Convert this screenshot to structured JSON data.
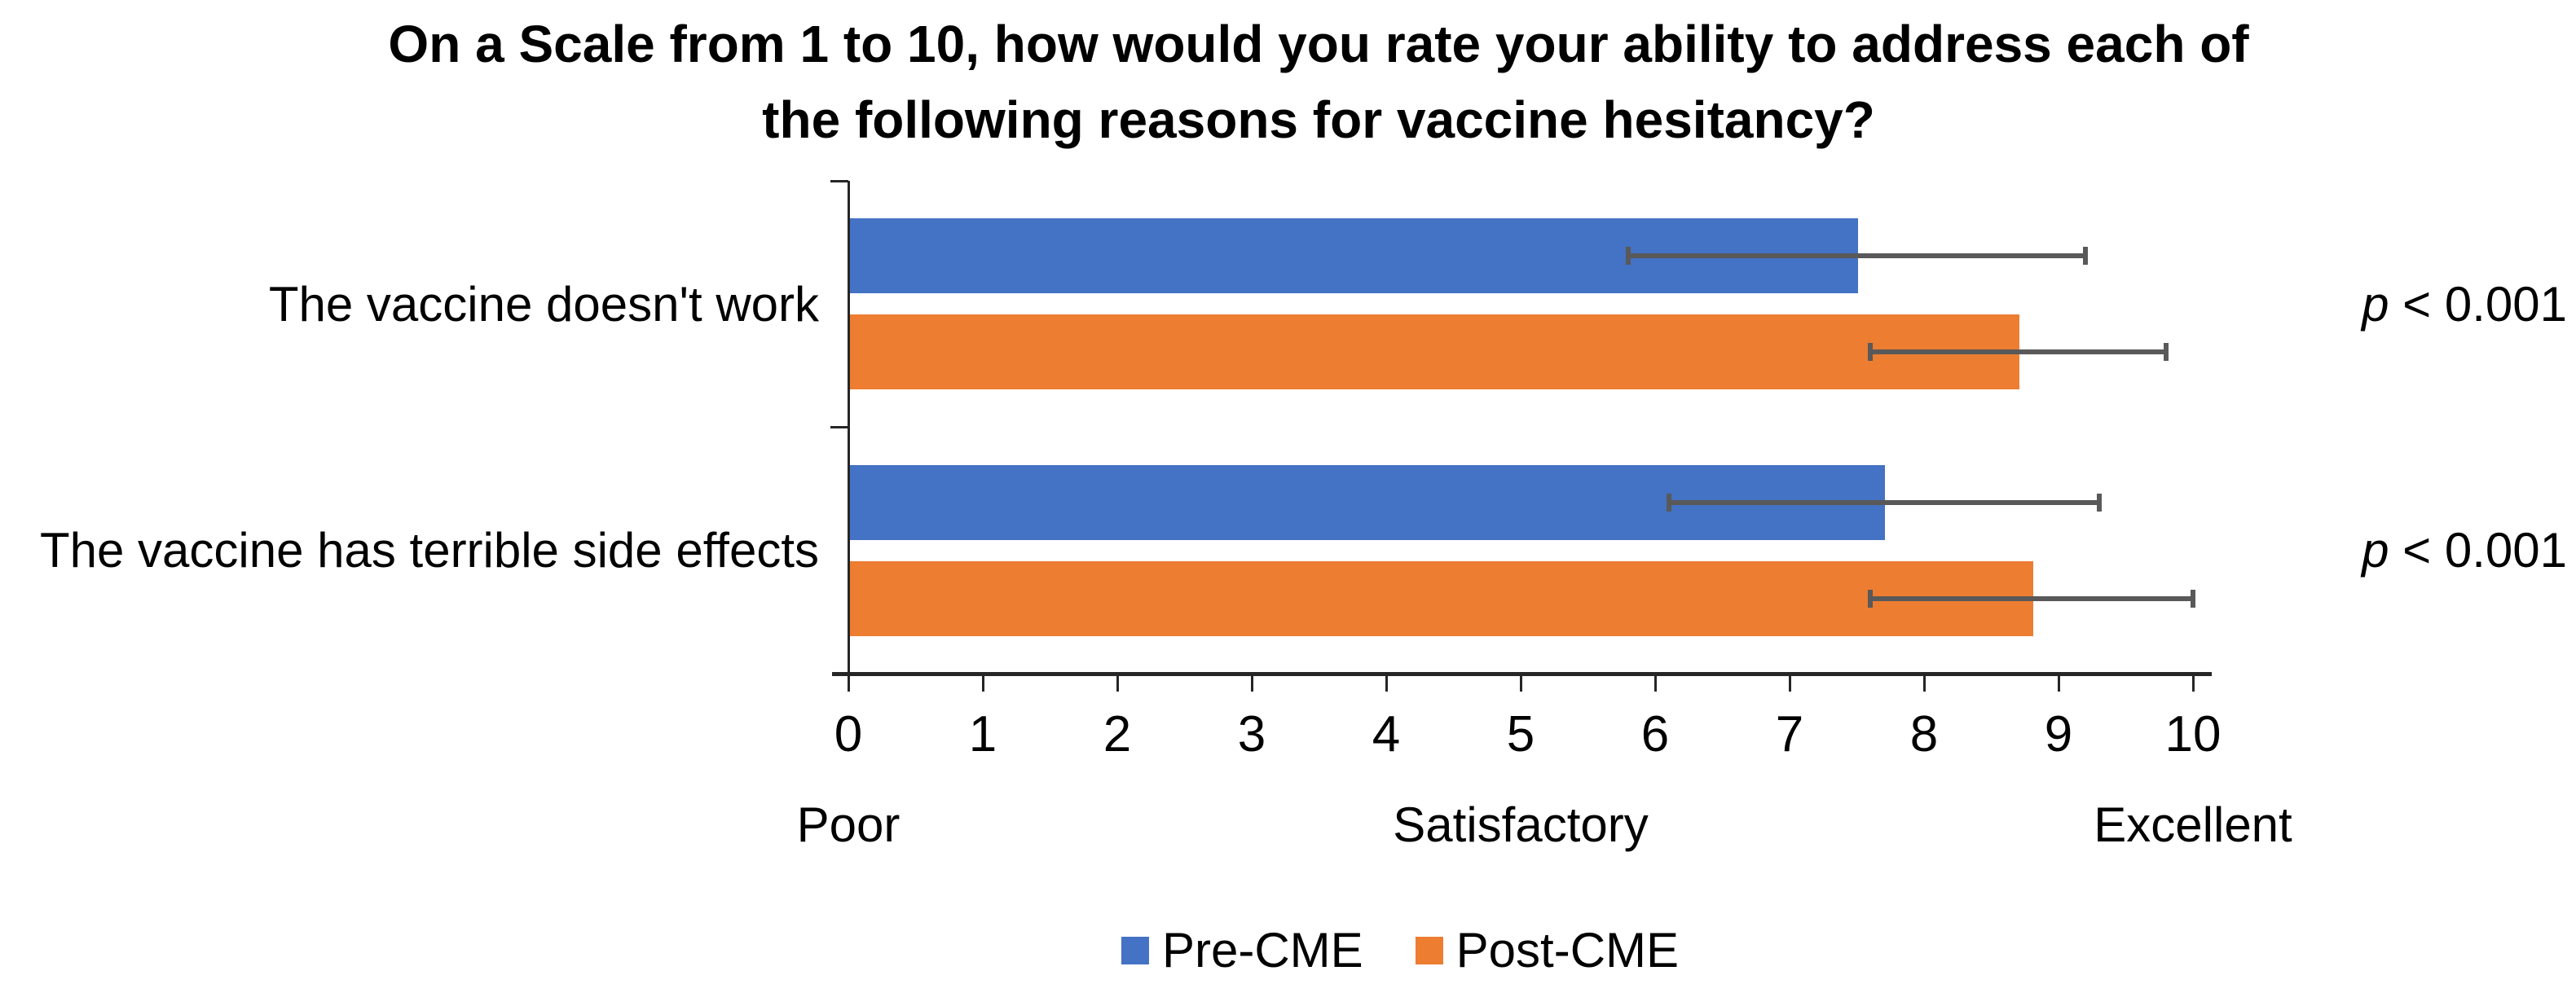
{
  "chart_data": {
    "type": "bar",
    "orientation": "horizontal",
    "title": "On a Scale from 1 to 10, how would you rate your ability to address each of the following reasons for vaccine hesitancy?",
    "categories": [
      "The vaccine doesn't work",
      "The vaccine has terrible side effects"
    ],
    "series": [
      {
        "name": "Pre-CME",
        "color": "#4472C4",
        "values": [
          7.5,
          7.7
        ],
        "error": [
          1.7,
          1.6
        ]
      },
      {
        "name": "Post-CME",
        "color": "#ED7D31",
        "values": [
          8.7,
          8.8
        ],
        "error": [
          1.1,
          1.2
        ]
      }
    ],
    "xlim": [
      0,
      10
    ],
    "x_ticks": [
      0,
      1,
      2,
      3,
      4,
      5,
      6,
      7,
      8,
      9,
      10
    ],
    "x_scale_descriptors": [
      {
        "label": "Poor",
        "at": 0
      },
      {
        "label": "Satisfactory",
        "at": 5
      },
      {
        "label": "Excellent",
        "at": 10
      }
    ],
    "annotations": [
      {
        "text": "p < 0.001",
        "italic_prefix_len": 1,
        "category_index": 0
      },
      {
        "text": "p < 0.001",
        "italic_prefix_len": 1,
        "category_index": 1
      }
    ],
    "legend": {
      "position": "bottom",
      "entries": [
        "Pre-CME",
        "Post-CME"
      ]
    },
    "colors": {
      "error_bar": "#595959",
      "axis": "#262626",
      "text": "#000000"
    },
    "gridlines": false
  }
}
